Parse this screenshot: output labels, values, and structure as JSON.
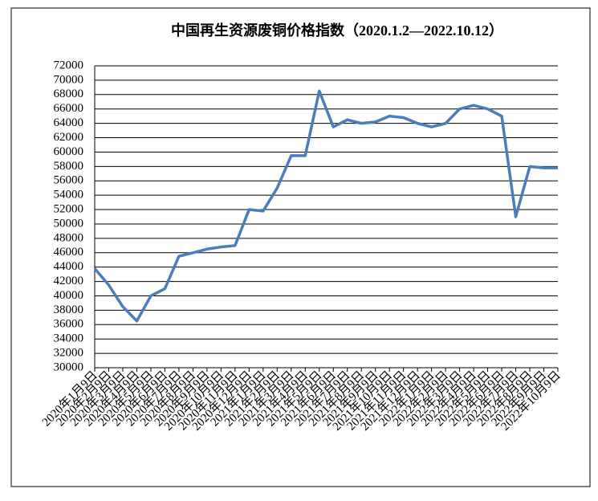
{
  "chart_data": {
    "type": "line",
    "title": "中国再生资源废铜价格指数（2020.1.2—2022.10.12）",
    "categories": [
      "2020年1月9日",
      "2020年2月9日",
      "2020年3月9日",
      "2020年4月9日",
      "2020年5月9日",
      "2020年6月9日",
      "2020年7月9日",
      "2020年8月9日",
      "2020年9月9日",
      "2020年10月9日",
      "2020年11月9日",
      "2020年12月9日",
      "2021年1月9日",
      "2021年2月9日",
      "2021年3月9日",
      "2021年4月9日",
      "2021年5月9日",
      "2021年6月9日",
      "2021年7月9日",
      "2021年8月9日",
      "2021年9月9日",
      "2021年10月9日",
      "2021年11月9日",
      "2021年12月9日",
      "2022年1月9日",
      "2022年2月9日",
      "2022年3月9日",
      "2022年4月9日",
      "2022年5月9日",
      "2022年6月9日",
      "2022年7月9日",
      "2022年8月9日",
      "2022年9月9日",
      "2022年10月9日"
    ],
    "values": [
      43800,
      41500,
      38500,
      36500,
      40000,
      41000,
      45500,
      46000,
      46500,
      46800,
      47000,
      52000,
      51800,
      55000,
      59500,
      59500,
      68500,
      63500,
      64500,
      64000,
      64200,
      65000,
      64800,
      64000,
      63500,
      64000,
      66000,
      66500,
      66000,
      65000,
      51000,
      58000,
      57800,
      57800
    ],
    "color": "#4a7ebb",
    "ylim": [
      30000,
      72000
    ],
    "yticks": [
      30000,
      32000,
      34000,
      36000,
      38000,
      40000,
      42000,
      44000,
      46000,
      48000,
      50000,
      52000,
      54000,
      56000,
      58000,
      60000,
      62000,
      64000,
      66000,
      68000,
      70000,
      72000
    ],
    "grid": true
  }
}
